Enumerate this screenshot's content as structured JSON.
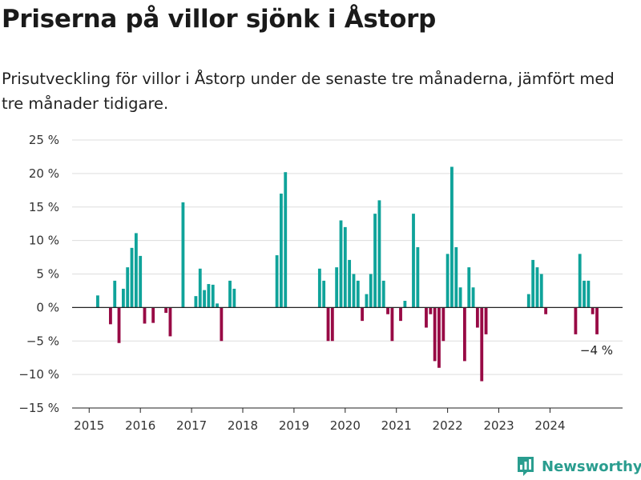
{
  "header": {
    "title": "Priserna på villor sjönk i Åstorp",
    "subtitle": "Prisutveckling för villor i Åstorp under de senaste tre månaderna, jämfört med tre månader tidigare."
  },
  "brand": {
    "name": "Newsworthy",
    "color": "#2a9d8f"
  },
  "chart_data": {
    "type": "bar",
    "ylim": [
      -15,
      25
    ],
    "y_ticks": [
      -15,
      -10,
      -5,
      0,
      5,
      10,
      15,
      20,
      25
    ],
    "y_tick_labels": [
      "−15 %",
      "−10 %",
      "−5 %",
      "0 %",
      "5 %",
      "10 %",
      "15 %",
      "20 %",
      "25 %"
    ],
    "x_ticks": [
      2015,
      2016,
      2017,
      2018,
      2019,
      2020,
      2021,
      2022,
      2023,
      2024
    ],
    "x_tick_labels": [
      "2015",
      "2016",
      "2017",
      "2018",
      "2019",
      "2020",
      "2021",
      "2022",
      "2023",
      "2024"
    ],
    "x_range": [
      2014.667,
      2025.417
    ],
    "positive_color": "#0fa39a",
    "negative_color": "#980a45",
    "grid": true,
    "annotation": {
      "text": "−4 %",
      "x": 2024.917,
      "y": -4
    },
    "points": [
      {
        "x": 2015.167,
        "y": 1.8
      },
      {
        "x": 2015.417,
        "y": -2.5
      },
      {
        "x": 2015.5,
        "y": 4
      },
      {
        "x": 2015.583,
        "y": -5.3
      },
      {
        "x": 2015.667,
        "y": 2.8
      },
      {
        "x": 2015.75,
        "y": 6
      },
      {
        "x": 2015.833,
        "y": 8.9
      },
      {
        "x": 2015.917,
        "y": 11.1
      },
      {
        "x": 2016.0,
        "y": 7.7
      },
      {
        "x": 2016.083,
        "y": -2.4
      },
      {
        "x": 2016.25,
        "y": -2.3
      },
      {
        "x": 2016.5,
        "y": -0.8
      },
      {
        "x": 2016.583,
        "y": -4.3
      },
      {
        "x": 2016.833,
        "y": 15.7
      },
      {
        "x": 2017.083,
        "y": 1.7
      },
      {
        "x": 2017.167,
        "y": 5.8
      },
      {
        "x": 2017.25,
        "y": 2.6
      },
      {
        "x": 2017.333,
        "y": 3.5
      },
      {
        "x": 2017.417,
        "y": 3.4
      },
      {
        "x": 2017.5,
        "y": 0.6
      },
      {
        "x": 2017.583,
        "y": -5
      },
      {
        "x": 2017.75,
        "y": 4
      },
      {
        "x": 2017.833,
        "y": 2.8
      },
      {
        "x": 2018.667,
        "y": 7.8
      },
      {
        "x": 2018.75,
        "y": 17
      },
      {
        "x": 2018.833,
        "y": 20.2
      },
      {
        "x": 2019.5,
        "y": 5.8
      },
      {
        "x": 2019.583,
        "y": 4
      },
      {
        "x": 2019.667,
        "y": -5
      },
      {
        "x": 2019.75,
        "y": -5
      },
      {
        "x": 2019.833,
        "y": 6
      },
      {
        "x": 2019.917,
        "y": 13
      },
      {
        "x": 2020.0,
        "y": 12
      },
      {
        "x": 2020.083,
        "y": 7.1
      },
      {
        "x": 2020.167,
        "y": 5
      },
      {
        "x": 2020.25,
        "y": 4
      },
      {
        "x": 2020.333,
        "y": -2
      },
      {
        "x": 2020.417,
        "y": 2
      },
      {
        "x": 2020.5,
        "y": 5
      },
      {
        "x": 2020.583,
        "y": 14
      },
      {
        "x": 2020.667,
        "y": 16
      },
      {
        "x": 2020.75,
        "y": 4
      },
      {
        "x": 2020.833,
        "y": -1
      },
      {
        "x": 2020.917,
        "y": -5
      },
      {
        "x": 2021.083,
        "y": -2
      },
      {
        "x": 2021.167,
        "y": 1
      },
      {
        "x": 2021.333,
        "y": 14
      },
      {
        "x": 2021.417,
        "y": 9
      },
      {
        "x": 2021.583,
        "y": -3
      },
      {
        "x": 2021.667,
        "y": -1
      },
      {
        "x": 2021.75,
        "y": -8
      },
      {
        "x": 2021.833,
        "y": -9
      },
      {
        "x": 2021.917,
        "y": -5
      },
      {
        "x": 2022.0,
        "y": 8
      },
      {
        "x": 2022.083,
        "y": 21
      },
      {
        "x": 2022.167,
        "y": 9
      },
      {
        "x": 2022.25,
        "y": 3
      },
      {
        "x": 2022.333,
        "y": -8
      },
      {
        "x": 2022.417,
        "y": 6
      },
      {
        "x": 2022.5,
        "y": 3
      },
      {
        "x": 2022.583,
        "y": -3
      },
      {
        "x": 2022.667,
        "y": -11
      },
      {
        "x": 2022.75,
        "y": -4
      },
      {
        "x": 2023.583,
        "y": 2
      },
      {
        "x": 2023.667,
        "y": 7.1
      },
      {
        "x": 2023.75,
        "y": 6
      },
      {
        "x": 2023.833,
        "y": 5
      },
      {
        "x": 2023.917,
        "y": -1
      },
      {
        "x": 2024.5,
        "y": -4
      },
      {
        "x": 2024.583,
        "y": 8
      },
      {
        "x": 2024.667,
        "y": 4
      },
      {
        "x": 2024.75,
        "y": 4
      },
      {
        "x": 2024.833,
        "y": -1
      },
      {
        "x": 2024.917,
        "y": -4
      }
    ]
  }
}
